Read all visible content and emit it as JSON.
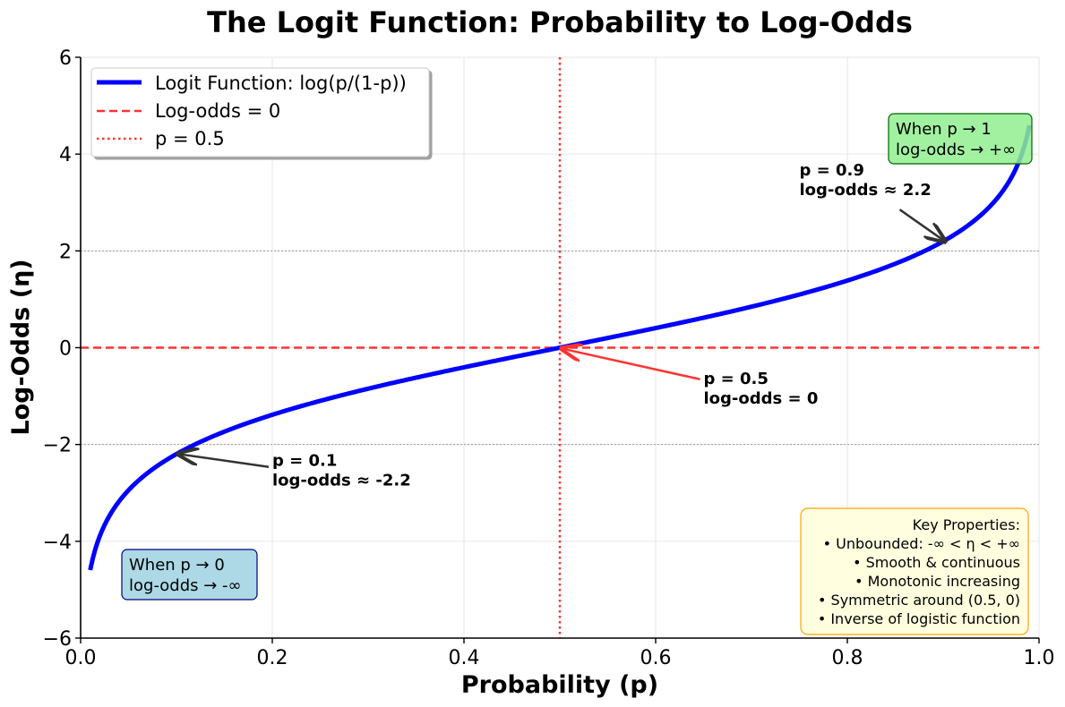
{
  "chart_data": {
    "type": "line",
    "title": "The Logit Function: Probability to Log-Odds",
    "xlabel": "Probability (p)",
    "ylabel": "Log-Odds (η)",
    "xlim": [
      0,
      1
    ],
    "ylim": [
      -6,
      6
    ],
    "xticks": [
      0.0,
      0.2,
      0.4,
      0.6,
      0.8,
      1.0
    ],
    "xtick_labels": [
      "0.0",
      "0.2",
      "0.4",
      "0.6",
      "0.8",
      "1.0"
    ],
    "yticks": [
      -6,
      -4,
      -2,
      0,
      2,
      4,
      6
    ],
    "ytick_labels": [
      "−6",
      "−4",
      "−2",
      "0",
      "2",
      "4",
      "6"
    ],
    "grid": true,
    "legend_position": "top-left",
    "series": [
      {
        "name": "Logit Function: log(p/(1-p))",
        "function": "log(p/(1-p))",
        "x_range": [
          0.01,
          0.99
        ],
        "color": "#0000ff",
        "style": "solid"
      }
    ],
    "reference_lines": [
      {
        "name": "Log-odds = 0",
        "orientation": "horizontal",
        "value": 0,
        "color": "#ff3333",
        "style": "dashed"
      },
      {
        "name": "p = 0.5",
        "orientation": "vertical",
        "value": 0.5,
        "color": "#ff3333",
        "style": "dotted"
      },
      {
        "orientation": "horizontal",
        "value": 2,
        "color": "#999999",
        "style": "dotted"
      },
      {
        "orientation": "horizontal",
        "value": -2,
        "color": "#999999",
        "style": "dotted"
      }
    ],
    "annotations": [
      {
        "line1": "p = 0.1",
        "line2": "log-odds ≈ -2.2",
        "point": [
          0.1,
          -2.197
        ],
        "text_at": [
          0.2,
          -2.5
        ],
        "arrow_color": "#333333"
      },
      {
        "line1": "p = 0.5",
        "line2": "log-odds = 0",
        "point": [
          0.5,
          0
        ],
        "text_at": [
          0.65,
          -0.8
        ],
        "arrow_color": "#ff3333"
      },
      {
        "line1": "p = 0.9",
        "line2": "log-odds ≈ 2.2",
        "point": [
          0.9,
          2.197
        ],
        "text_at": [
          0.75,
          3.5
        ],
        "arrow_color": "#333333"
      }
    ],
    "boxes": {
      "low": {
        "line1": "When p → 0",
        "line2": "log-odds → -∞",
        "bg": "#add8e6",
        "border": "#000080"
      },
      "high": {
        "line1": "When p → 1",
        "line2": "log-odds → +∞",
        "bg": "#90ee90",
        "border": "#006400"
      },
      "properties": {
        "bg": "#ffffe0",
        "border": "#ffa500",
        "lines": [
          "Key Properties:",
          "• Unbounded: -∞ < η < +∞",
          "• Smooth & continuous",
          "• Monotonic increasing",
          "• Symmetric around (0.5, 0)",
          "• Inverse of logistic function"
        ]
      }
    }
  }
}
